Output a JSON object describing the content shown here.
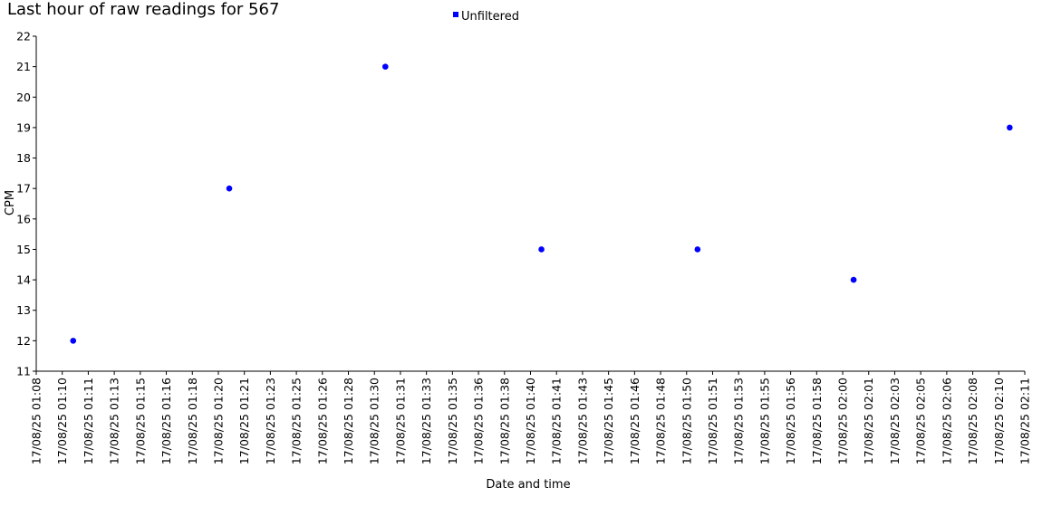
{
  "chart_data": {
    "type": "scatter",
    "title": "Last hour of raw readings for 567",
    "xlabel": "Date and time",
    "ylabel": "CPM",
    "ylim": [
      11,
      22
    ],
    "y_ticks": [
      11,
      12,
      13,
      14,
      15,
      16,
      17,
      18,
      19,
      20,
      21,
      22
    ],
    "x_tick_labels": [
      "17/08/25 01:08",
      "17/08/25 01:10",
      "17/08/25 01:11",
      "17/08/25 01:13",
      "17/08/25 01:15",
      "17/08/25 01:16",
      "17/08/25 01:18",
      "17/08/25 01:20",
      "17/08/25 01:21",
      "17/08/25 01:23",
      "17/08/25 01:25",
      "17/08/25 01:26",
      "17/08/25 01:28",
      "17/08/25 01:30",
      "17/08/25 01:31",
      "17/08/25 01:33",
      "17/08/25 01:35",
      "17/08/25 01:36",
      "17/08/25 01:38",
      "17/08/25 01:40",
      "17/08/25 01:41",
      "17/08/25 01:43",
      "17/08/25 01:45",
      "17/08/25 01:46",
      "17/08/25 01:48",
      "17/08/25 01:50",
      "17/08/25 01:51",
      "17/08/25 01:53",
      "17/08/25 01:55",
      "17/08/25 01:56",
      "17/08/25 01:58",
      "17/08/25 02:00",
      "17/08/25 02:01",
      "17/08/25 02:03",
      "17/08/25 02:05",
      "17/08/25 02:06",
      "17/08/25 02:08",
      "17/08/25 02:10",
      "17/08/25 02:11"
    ],
    "x_tick_minutes": [
      "01:08:00",
      "01:09:40",
      "01:11:20",
      "01:13:00",
      "01:14:40",
      "01:16:20",
      "01:18:00",
      "01:19:40",
      "01:21:20",
      "01:23:00",
      "01:24:40",
      "01:26:20",
      "01:28:00",
      "01:29:40",
      "01:31:20",
      "01:33:00",
      "01:34:40",
      "01:36:20",
      "01:38:00",
      "01:39:40",
      "01:41:20",
      "01:43:00",
      "01:44:40",
      "01:46:20",
      "01:48:00",
      "01:49:40",
      "01:51:20",
      "01:53:00",
      "01:54:40",
      "01:56:20",
      "01:58:00",
      "01:59:40",
      "02:01:20",
      "02:03:00",
      "02:04:40",
      "02:06:20",
      "02:08:00",
      "02:09:40",
      "02:11:20"
    ],
    "series": [
      {
        "name": "Unfiltered",
        "color": "#0000ff",
        "points": [
          {
            "x": "17/08/25 01:10:22",
            "y": 12
          },
          {
            "x": "17/08/25 01:20:22",
            "y": 17
          },
          {
            "x": "17/08/25 01:30:22",
            "y": 21
          },
          {
            "x": "17/08/25 01:40:22",
            "y": 15
          },
          {
            "x": "17/08/25 01:50:22",
            "y": 15
          },
          {
            "x": "17/08/25 02:00:22",
            "y": 14
          },
          {
            "x": "17/08/25 02:10:22",
            "y": 19
          }
        ]
      }
    ],
    "legend_position": "top-center",
    "grid": false
  }
}
